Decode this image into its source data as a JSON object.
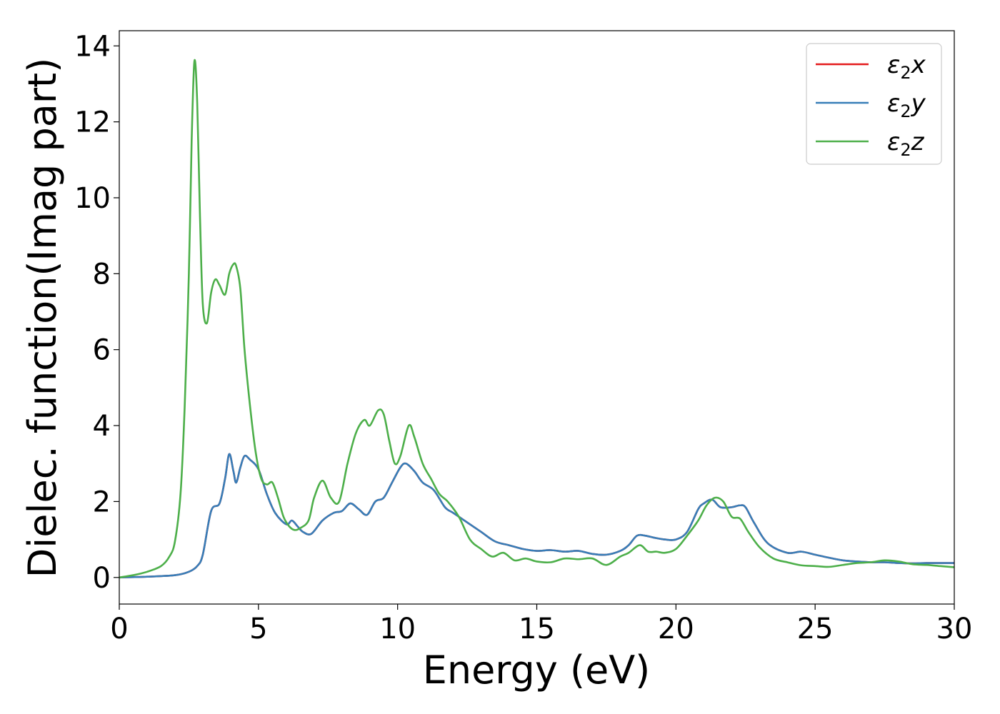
{
  "chart_data": {
    "type": "line",
    "xlabel": "Energy (eV)",
    "ylabel": "Dielec. function(Imag part)",
    "xlim": [
      0,
      30
    ],
    "ylim": [
      -0.7,
      14.4
    ],
    "xticks": [
      0,
      5,
      10,
      15,
      20,
      25,
      30
    ],
    "yticks": [
      0,
      2,
      4,
      6,
      8,
      10,
      12,
      14
    ],
    "xtick_labels": [
      "0",
      "5",
      "10",
      "15",
      "20",
      "25",
      "30"
    ],
    "ytick_labels": [
      "0",
      "2",
      "4",
      "6",
      "8",
      "10",
      "12",
      "14"
    ],
    "grid": false,
    "legend_position": "top-right",
    "series": [
      {
        "name": "ε₂x",
        "label_base": "ε",
        "label_sub": "2",
        "label_axis": "x",
        "color": "#e41a1c",
        "x": [
          0,
          1,
          2,
          2.5,
          2.8,
          3.0,
          3.3,
          3.6,
          3.8,
          3.95,
          4.1,
          4.2,
          4.35,
          4.5,
          4.7,
          5.0,
          5.3,
          5.6,
          6.0,
          6.2,
          6.4,
          6.6,
          6.9,
          7.3,
          7.7,
          8.0,
          8.3,
          8.6,
          8.9,
          9.2,
          9.5,
          9.8,
          10.1,
          10.3,
          10.6,
          10.9,
          11.3,
          11.7,
          12.0,
          12.5,
          13.0,
          13.5,
          14.0,
          14.5,
          15.0,
          15.5,
          16.0,
          16.5,
          17.0,
          17.5,
          18.0,
          18.3,
          18.6,
          18.9,
          19.2,
          19.6,
          20.0,
          20.4,
          20.8,
          21.0,
          21.3,
          21.6,
          22.0,
          22.3,
          22.5,
          22.8,
          23.3,
          24.0,
          24.5,
          25.0,
          25.5,
          26.0,
          26.5,
          27.0,
          27.5,
          28.0,
          28.5,
          29.0,
          29.5,
          30.0
        ],
        "y": [
          0.0,
          0.02,
          0.06,
          0.15,
          0.3,
          0.6,
          1.75,
          1.95,
          2.6,
          3.25,
          2.8,
          2.5,
          2.9,
          3.2,
          3.1,
          2.85,
          2.2,
          1.7,
          1.4,
          1.5,
          1.35,
          1.2,
          1.15,
          1.5,
          1.7,
          1.75,
          1.95,
          1.8,
          1.65,
          2.0,
          2.1,
          2.5,
          2.9,
          3.0,
          2.8,
          2.5,
          2.3,
          1.85,
          1.7,
          1.45,
          1.2,
          0.95,
          0.85,
          0.75,
          0.7,
          0.72,
          0.68,
          0.7,
          0.62,
          0.6,
          0.7,
          0.85,
          1.1,
          1.1,
          1.05,
          1.0,
          1.0,
          1.2,
          1.8,
          1.95,
          2.05,
          1.85,
          1.85,
          1.9,
          1.85,
          1.45,
          0.9,
          0.65,
          0.68,
          0.6,
          0.52,
          0.45,
          0.42,
          0.4,
          0.4,
          0.38,
          0.37,
          0.38,
          0.38,
          0.38
        ]
      },
      {
        "name": "ε₂y",
        "label_base": "ε",
        "label_sub": "2",
        "label_axis": "y",
        "color": "#377eb8",
        "x": [
          0,
          1,
          2,
          2.5,
          2.8,
          3.0,
          3.3,
          3.6,
          3.8,
          3.95,
          4.1,
          4.2,
          4.35,
          4.5,
          4.7,
          5.0,
          5.3,
          5.6,
          6.0,
          6.2,
          6.4,
          6.6,
          6.9,
          7.3,
          7.7,
          8.0,
          8.3,
          8.6,
          8.9,
          9.2,
          9.5,
          9.8,
          10.1,
          10.3,
          10.6,
          10.9,
          11.3,
          11.7,
          12.0,
          12.5,
          13.0,
          13.5,
          14.0,
          14.5,
          15.0,
          15.5,
          16.0,
          16.5,
          17.0,
          17.5,
          18.0,
          18.3,
          18.6,
          18.9,
          19.2,
          19.6,
          20.0,
          20.4,
          20.8,
          21.0,
          21.3,
          21.6,
          22.0,
          22.3,
          22.5,
          22.8,
          23.3,
          24.0,
          24.5,
          25.0,
          25.5,
          26.0,
          26.5,
          27.0,
          27.5,
          28.0,
          28.5,
          29.0,
          29.5,
          30.0
        ],
        "y": [
          0.0,
          0.02,
          0.06,
          0.15,
          0.3,
          0.6,
          1.75,
          1.95,
          2.6,
          3.25,
          2.8,
          2.5,
          2.9,
          3.2,
          3.1,
          2.85,
          2.2,
          1.7,
          1.4,
          1.5,
          1.35,
          1.2,
          1.15,
          1.5,
          1.7,
          1.75,
          1.95,
          1.8,
          1.65,
          2.0,
          2.1,
          2.5,
          2.9,
          3.0,
          2.8,
          2.5,
          2.3,
          1.85,
          1.7,
          1.45,
          1.2,
          0.95,
          0.85,
          0.75,
          0.7,
          0.72,
          0.68,
          0.7,
          0.62,
          0.6,
          0.7,
          0.85,
          1.1,
          1.1,
          1.05,
          1.0,
          1.0,
          1.2,
          1.8,
          1.95,
          2.05,
          1.85,
          1.85,
          1.9,
          1.85,
          1.45,
          0.9,
          0.65,
          0.68,
          0.6,
          0.52,
          0.45,
          0.42,
          0.4,
          0.4,
          0.38,
          0.37,
          0.38,
          0.38,
          0.38
        ]
      },
      {
        "name": "ε₂z",
        "label_base": "ε",
        "label_sub": "2",
        "label_axis": "z",
        "color": "#4daf4a",
        "x": [
          0,
          0.5,
          1.0,
          1.5,
          1.8,
          2.0,
          2.2,
          2.35,
          2.5,
          2.6,
          2.7,
          2.8,
          2.9,
          3.0,
          3.15,
          3.3,
          3.45,
          3.6,
          3.8,
          3.95,
          4.1,
          4.2,
          4.35,
          4.5,
          4.7,
          4.9,
          5.1,
          5.3,
          5.5,
          5.7,
          5.9,
          6.1,
          6.3,
          6.5,
          6.8,
          7.0,
          7.3,
          7.6,
          7.9,
          8.2,
          8.5,
          8.8,
          9.0,
          9.3,
          9.5,
          9.7,
          9.9,
          10.1,
          10.4,
          10.6,
          10.9,
          11.2,
          11.5,
          11.8,
          12.2,
          12.6,
          13.0,
          13.4,
          13.8,
          14.2,
          14.6,
          15.0,
          15.5,
          16.0,
          16.5,
          17.0,
          17.5,
          18.0,
          18.3,
          18.7,
          19.0,
          19.3,
          19.6,
          20.0,
          20.4,
          20.8,
          21.1,
          21.4,
          21.7,
          22.0,
          22.3,
          22.6,
          23.0,
          23.5,
          24.0,
          24.5,
          25.0,
          25.5,
          26.0,
          26.5,
          27.0,
          27.5,
          28.0,
          28.5,
          29.0,
          29.5,
          30.0
        ],
        "y": [
          0.0,
          0.06,
          0.15,
          0.3,
          0.55,
          0.95,
          2.2,
          4.5,
          8.0,
          11.5,
          13.6,
          12.5,
          9.5,
          7.2,
          6.7,
          7.5,
          7.85,
          7.7,
          7.45,
          8.0,
          8.25,
          8.2,
          7.6,
          6.0,
          4.5,
          3.3,
          2.6,
          2.45,
          2.5,
          2.1,
          1.6,
          1.35,
          1.25,
          1.3,
          1.5,
          2.1,
          2.55,
          2.1,
          2.0,
          3.0,
          3.8,
          4.15,
          4.0,
          4.4,
          4.3,
          3.6,
          3.0,
          3.2,
          4.0,
          3.7,
          3.0,
          2.6,
          2.2,
          2.0,
          1.6,
          1.0,
          0.75,
          0.55,
          0.65,
          0.45,
          0.5,
          0.42,
          0.4,
          0.5,
          0.48,
          0.5,
          0.33,
          0.55,
          0.65,
          0.85,
          0.68,
          0.68,
          0.65,
          0.75,
          1.1,
          1.5,
          1.9,
          2.1,
          2.0,
          1.6,
          1.55,
          1.2,
          0.8,
          0.5,
          0.4,
          0.32,
          0.3,
          0.28,
          0.33,
          0.38,
          0.4,
          0.45,
          0.42,
          0.35,
          0.33,
          0.3,
          0.27
        ]
      }
    ]
  }
}
